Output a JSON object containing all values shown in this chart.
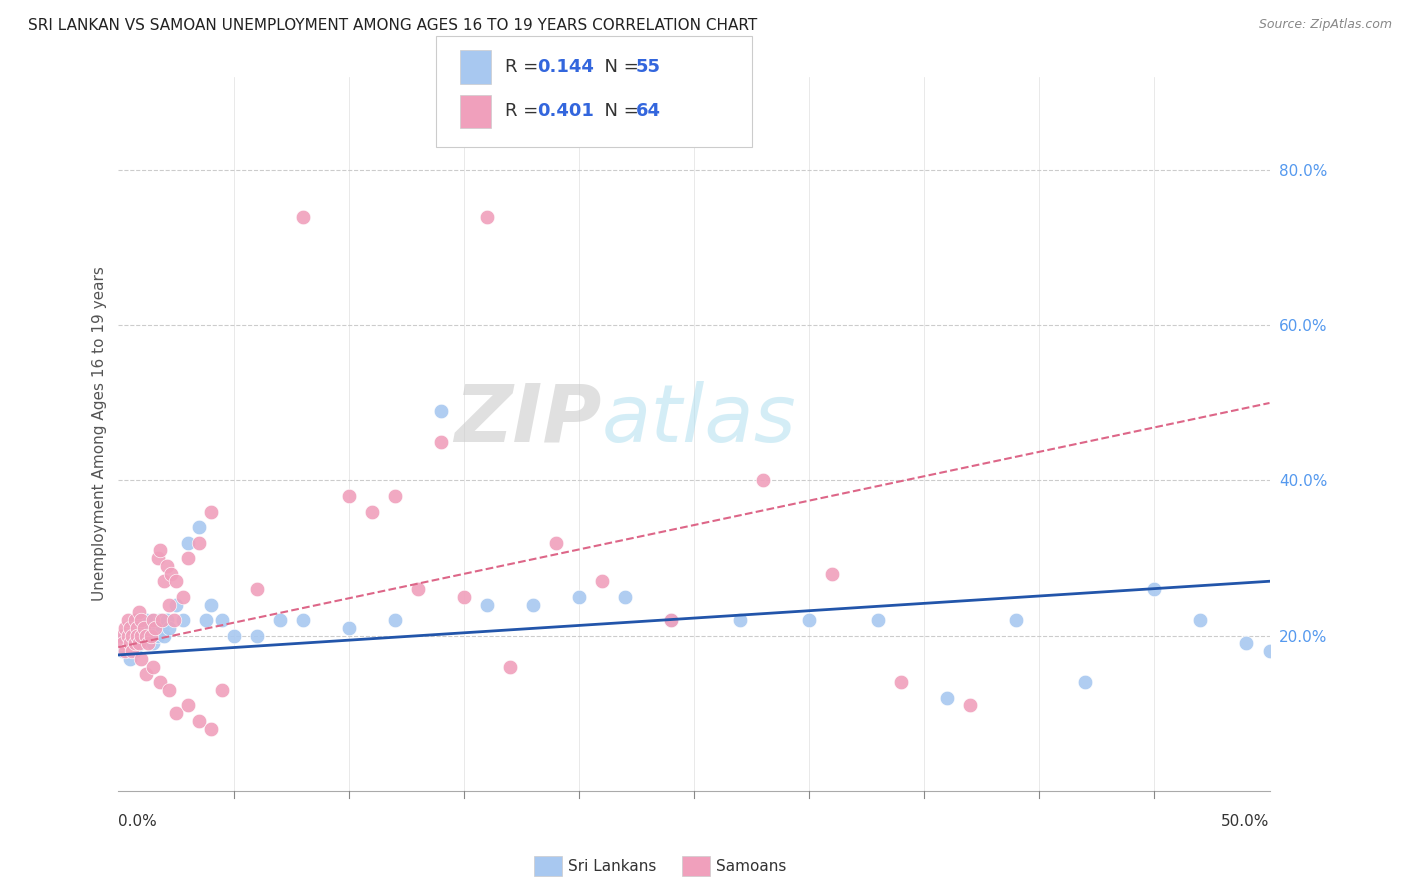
{
  "title": "SRI LANKAN VS SAMOAN UNEMPLOYMENT AMONG AGES 16 TO 19 YEARS CORRELATION CHART",
  "source": "Source: ZipAtlas.com",
  "ylabel": "Unemployment Among Ages 16 to 19 years",
  "xmin": 0.0,
  "xmax": 0.5,
  "ymin": 0.0,
  "ymax": 0.92,
  "right_yticks": [
    0.2,
    0.4,
    0.6,
    0.8
  ],
  "right_yticklabels": [
    "20.0%",
    "40.0%",
    "60.0%",
    "80.0%"
  ],
  "color_sri": "#a8c8f0",
  "color_samoan": "#f0a0bc",
  "trendline_sri_color": "#2255aa",
  "trendline_samoan_color": "#dd6688",
  "watermark_zip": "ZIP",
  "watermark_atlas": "atlas",
  "sri_lankans_x": [
    0.002,
    0.003,
    0.004,
    0.005,
    0.005,
    0.006,
    0.007,
    0.007,
    0.008,
    0.008,
    0.009,
    0.01,
    0.01,
    0.011,
    0.012,
    0.013,
    0.014,
    0.015,
    0.015,
    0.016,
    0.017,
    0.018,
    0.019,
    0.02,
    0.021,
    0.022,
    0.025,
    0.028,
    0.03,
    0.035,
    0.038,
    0.04,
    0.045,
    0.05,
    0.06,
    0.07,
    0.08,
    0.1,
    0.12,
    0.14,
    0.16,
    0.18,
    0.2,
    0.22,
    0.24,
    0.27,
    0.3,
    0.33,
    0.36,
    0.39,
    0.42,
    0.45,
    0.47,
    0.49,
    0.5
  ],
  "sri_lankans_y": [
    0.18,
    0.2,
    0.19,
    0.21,
    0.17,
    0.2,
    0.18,
    0.22,
    0.19,
    0.21,
    0.2,
    0.21,
    0.19,
    0.2,
    0.22,
    0.21,
    0.2,
    0.19,
    0.22,
    0.21,
    0.2,
    0.22,
    0.21,
    0.2,
    0.22,
    0.21,
    0.24,
    0.22,
    0.32,
    0.34,
    0.22,
    0.24,
    0.22,
    0.2,
    0.2,
    0.22,
    0.22,
    0.21,
    0.22,
    0.49,
    0.24,
    0.24,
    0.25,
    0.25,
    0.22,
    0.22,
    0.22,
    0.22,
    0.12,
    0.22,
    0.14,
    0.26,
    0.22,
    0.19,
    0.18
  ],
  "samoans_x": [
    0.001,
    0.002,
    0.003,
    0.003,
    0.004,
    0.004,
    0.005,
    0.005,
    0.006,
    0.006,
    0.007,
    0.007,
    0.008,
    0.008,
    0.009,
    0.009,
    0.01,
    0.01,
    0.011,
    0.012,
    0.013,
    0.014,
    0.015,
    0.016,
    0.017,
    0.018,
    0.019,
    0.02,
    0.021,
    0.022,
    0.023,
    0.024,
    0.025,
    0.028,
    0.03,
    0.035,
    0.04,
    0.045,
    0.06,
    0.08,
    0.1,
    0.11,
    0.12,
    0.13,
    0.14,
    0.15,
    0.16,
    0.17,
    0.19,
    0.21,
    0.24,
    0.28,
    0.31,
    0.34,
    0.37,
    0.01,
    0.012,
    0.015,
    0.018,
    0.022,
    0.025,
    0.03,
    0.035,
    0.04
  ],
  "samoans_y": [
    0.2,
    0.19,
    0.21,
    0.18,
    0.2,
    0.22,
    0.19,
    0.21,
    0.2,
    0.18,
    0.22,
    0.19,
    0.21,
    0.2,
    0.19,
    0.23,
    0.22,
    0.2,
    0.21,
    0.2,
    0.19,
    0.2,
    0.22,
    0.21,
    0.3,
    0.31,
    0.22,
    0.27,
    0.29,
    0.24,
    0.28,
    0.22,
    0.27,
    0.25,
    0.3,
    0.32,
    0.36,
    0.13,
    0.26,
    0.74,
    0.38,
    0.36,
    0.38,
    0.26,
    0.45,
    0.25,
    0.74,
    0.16,
    0.32,
    0.27,
    0.22,
    0.4,
    0.28,
    0.14,
    0.11,
    0.17,
    0.15,
    0.16,
    0.14,
    0.13,
    0.1,
    0.11,
    0.09,
    0.08
  ]
}
